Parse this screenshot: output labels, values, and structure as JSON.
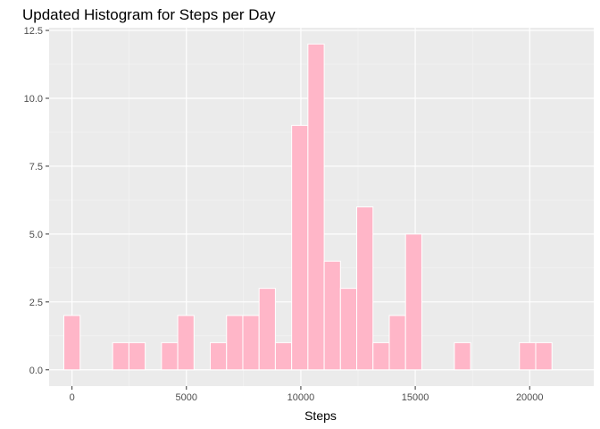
{
  "chart_data": {
    "type": "bar",
    "title": "Updated Histogram for Steps per Day",
    "xlabel": "Steps",
    "ylabel": "",
    "bin_width": 711,
    "bin_centers": [
      0,
      711,
      1422,
      2133,
      2844,
      3555,
      4266,
      4977,
      5688,
      6399,
      7110,
      7821,
      8532,
      9243,
      9954,
      10665,
      11376,
      12087,
      12798,
      13509,
      14220,
      14931,
      15642,
      16353,
      17064,
      17775,
      18486,
      19197,
      19908,
      20619,
      21330
    ],
    "values": [
      2,
      0,
      0,
      1,
      1,
      0,
      1,
      2,
      0,
      1,
      2,
      2,
      3,
      1,
      9,
      12,
      4,
      3,
      6,
      1,
      2,
      5,
      0,
      0,
      1,
      0,
      0,
      0,
      1,
      1,
      0
    ],
    "xlim": [
      -1000,
      22800
    ],
    "ylim": [
      -0.6,
      12.6
    ],
    "x_ticks": [
      0,
      5000,
      10000,
      15000,
      20000
    ],
    "x_tick_labels": [
      "0",
      "5000",
      "10000",
      "15000",
      "20000"
    ],
    "y_ticks": [
      0,
      2.5,
      5,
      7.5,
      10,
      12.5
    ],
    "y_tick_labels": [
      "0.0",
      "2.5",
      "5.0",
      "7.5",
      "10.0",
      "12.5"
    ],
    "grid": true,
    "colors": {
      "panel_background": "#ebebeb",
      "grid_major": "#ffffff",
      "grid_minor": "#f5f5f5",
      "bar_fill": "#ffb6c8",
      "bar_outline": "#ffffff"
    }
  }
}
